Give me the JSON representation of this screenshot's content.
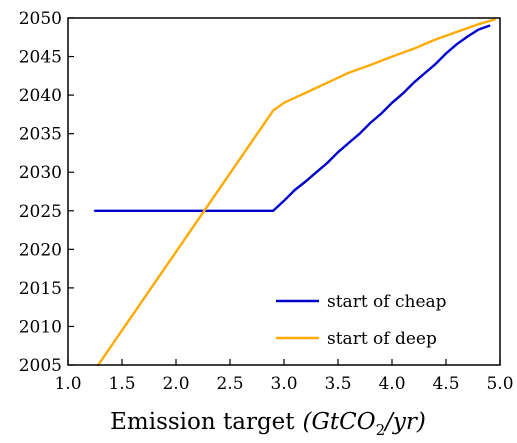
{
  "chart_data": {
    "type": "line",
    "title": "",
    "xlabel": "Emission target",
    "xlabel_units": "(GtCO",
    "xlabel_units_sub": "2",
    "xlabel_units_end": "/yr)",
    "ylabel": "",
    "xlim": [
      1.0,
      5.0
    ],
    "ylim": [
      2005,
      2050
    ],
    "xticks": [
      "1.0",
      "1.5",
      "2.0",
      "2.5",
      "3.0",
      "3.5",
      "4.0",
      "4.5",
      "5.0"
    ],
    "yticks": [
      "2005",
      "2010",
      "2015",
      "2020",
      "2025",
      "2030",
      "2035",
      "2040",
      "2045",
      "2050"
    ],
    "grid": false,
    "legend_position": "bottom-right",
    "series": [
      {
        "name": "start of cheap",
        "color": "#0000cc",
        "x": [
          1.25,
          1.5,
          2.0,
          2.5,
          2.9,
          3.0,
          3.1,
          3.2,
          3.3,
          3.4,
          3.5,
          3.6,
          3.7,
          3.8,
          3.9,
          4.0,
          4.1,
          4.2,
          4.3,
          4.4,
          4.5,
          4.6,
          4.7,
          4.8,
          4.9
        ],
        "y": [
          2025,
          2025,
          2025,
          2025,
          2025,
          2026.3,
          2027.7,
          2028.8,
          2030.0,
          2031.2,
          2032.6,
          2033.8,
          2035.0,
          2036.4,
          2037.6,
          2039.0,
          2040.2,
          2041.6,
          2042.8,
          2044.0,
          2045.4,
          2046.6,
          2047.6,
          2048.5,
          2049.0
        ]
      },
      {
        "name": "start of deep",
        "color": "#ffaa00",
        "x": [
          1.28,
          2.9,
          3.0,
          3.2,
          3.4,
          3.6,
          3.8,
          4.0,
          4.2,
          4.4,
          4.6,
          4.8,
          4.95
        ],
        "y": [
          2005,
          2038,
          2039.0,
          2040.3,
          2041.6,
          2042.9,
          2043.9,
          2045.0,
          2046.0,
          2047.2,
          2048.2,
          2049.2,
          2049.8
        ]
      }
    ]
  }
}
